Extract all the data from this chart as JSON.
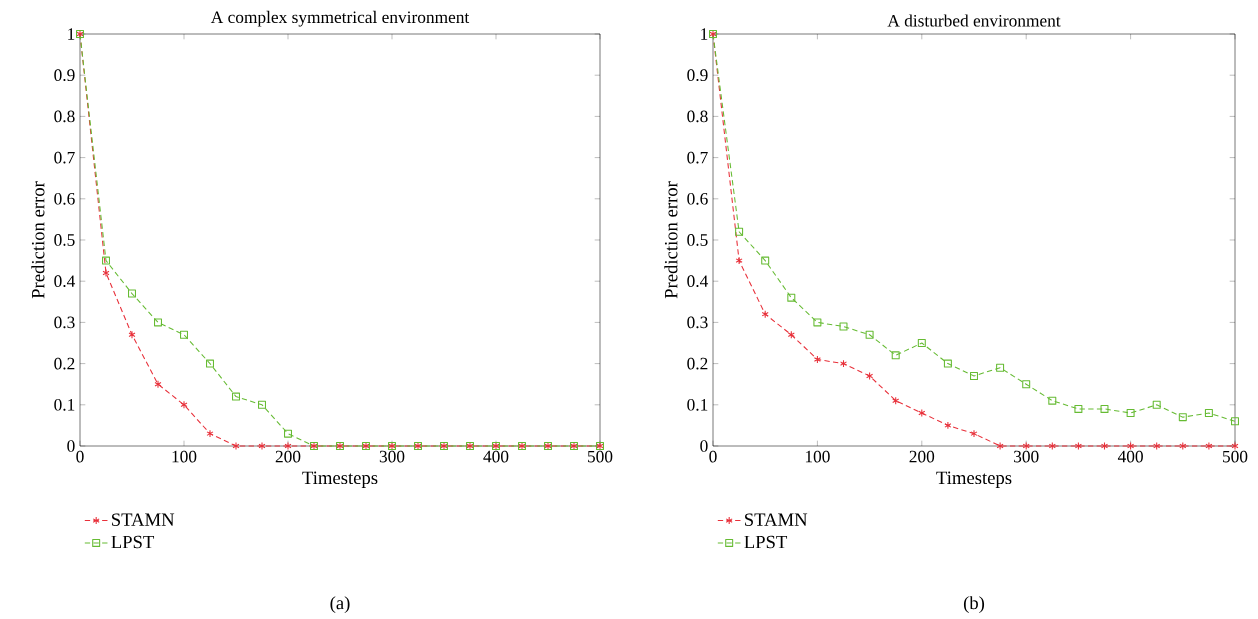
{
  "chart_data": [
    {
      "type": "line",
      "title": "A complex symmetrical environment",
      "xlabel": "Timesteps",
      "ylabel": "Prediction error",
      "x": [
        0,
        25,
        50,
        75,
        100,
        125,
        150,
        175,
        200,
        225,
        250,
        275,
        300,
        325,
        350,
        375,
        400,
        425,
        450,
        475,
        500
      ],
      "series": [
        {
          "name": "STAMN",
          "color": "#e8303a",
          "marker": "cross",
          "values": [
            1,
            0.42,
            0.27,
            0.15,
            0.1,
            0.03,
            0,
            0,
            0,
            0,
            0,
            0,
            0,
            0,
            0,
            0,
            0,
            0,
            0,
            0,
            0
          ]
        },
        {
          "name": "LPST",
          "color": "#66bb33",
          "marker": "square",
          "values": [
            1,
            0.45,
            0.37,
            0.3,
            0.27,
            0.2,
            0.12,
            0.1,
            0.03,
            0,
            0,
            0,
            0,
            0,
            0,
            0,
            0,
            0,
            0,
            0,
            0
          ]
        }
      ],
      "line_style": "dashed",
      "legend": "bottom left",
      "grid": false,
      "xlim": [
        0,
        500
      ],
      "ylim": [
        0,
        1
      ],
      "xticks": [
        0,
        100,
        200,
        300,
        400,
        500
      ],
      "yticks": [
        0,
        0.1,
        0.2,
        0.3,
        0.4,
        0.5,
        0.6,
        0.7,
        0.8,
        0.9,
        1
      ],
      "annotations": [
        "(a)"
      ]
    },
    {
      "type": "line",
      "title": "A disturbed environment",
      "xlabel": "Timesteps",
      "ylabel": "Prediction error",
      "x": [
        0,
        25,
        50,
        75,
        100,
        125,
        150,
        175,
        200,
        225,
        250,
        275,
        300,
        325,
        350,
        375,
        400,
        425,
        450,
        475,
        500
      ],
      "series": [
        {
          "name": "STAMN",
          "color": "#e8303a",
          "marker": "cross",
          "values": [
            1,
            0.45,
            0.32,
            0.27,
            0.21,
            0.2,
            0.17,
            0.11,
            0.08,
            0.05,
            0.03,
            0,
            0,
            0,
            0,
            0,
            0,
            0,
            0,
            0,
            0
          ]
        },
        {
          "name": "LPST",
          "color": "#66bb33",
          "marker": "square",
          "values": [
            1,
            0.52,
            0.45,
            0.36,
            0.3,
            0.29,
            0.27,
            0.22,
            0.25,
            0.2,
            0.17,
            0.19,
            0.15,
            0.11,
            0.09,
            0.09,
            0.08,
            0.1,
            0.07,
            0.08,
            0.06
          ]
        }
      ],
      "line_style": "dashed",
      "legend": "bottom left",
      "grid": false,
      "xlim": [
        0,
        500
      ],
      "ylim": [
        0,
        1
      ],
      "xticks": [
        0,
        100,
        200,
        300,
        400,
        500
      ],
      "yticks": [
        0,
        0.1,
        0.2,
        0.3,
        0.4,
        0.5,
        0.6,
        0.7,
        0.8,
        0.9,
        1
      ],
      "annotations": [
        "(b)"
      ]
    }
  ]
}
